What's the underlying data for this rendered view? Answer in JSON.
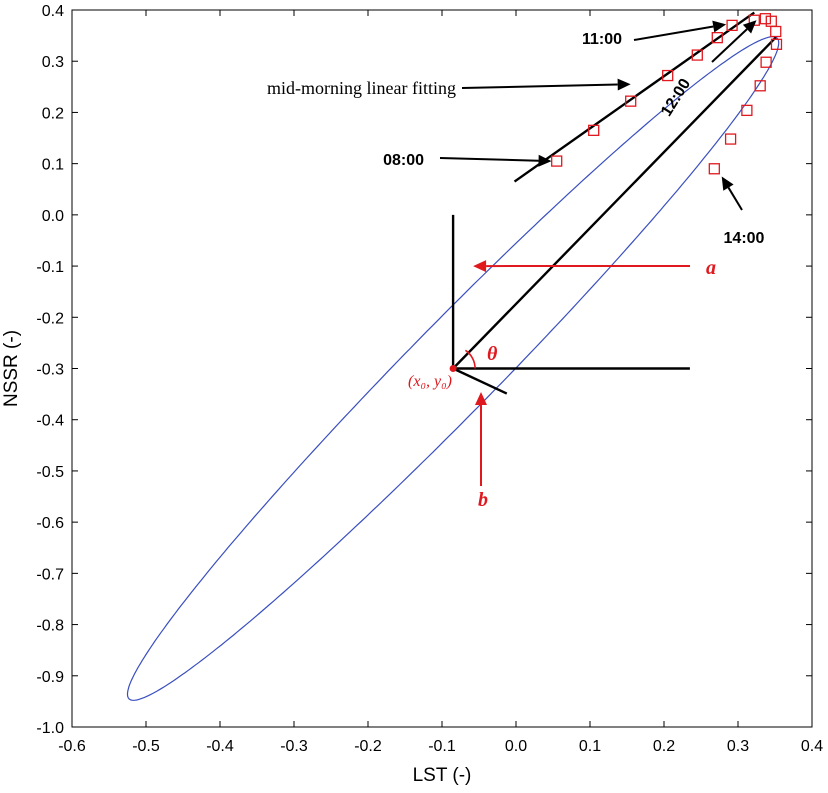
{
  "colors": {
    "ellipse": "#3a4fbf",
    "marker": "#e0191f",
    "annotation_red": "#e0191f",
    "line": "#000000"
  },
  "chart_data": {
    "type": "scatter",
    "title": "",
    "xlabel": "LST (-)",
    "ylabel": "NSSR (-)",
    "xlim": [
      -0.6,
      0.4
    ],
    "ylim": [
      -1.0,
      0.4
    ],
    "xticks": [
      "-0.6",
      "-0.5",
      "-0.4",
      "-0.3",
      "-0.2",
      "-0.1",
      "0.0",
      "0.1",
      "0.2",
      "0.3",
      "0.4"
    ],
    "yticks": [
      "0.4",
      "0.3",
      "0.2",
      "0.1",
      "0.0",
      "-0.1",
      "-0.2",
      "-0.3",
      "-0.4",
      "-0.5",
      "-0.6",
      "-0.7",
      "-0.8",
      "-0.9",
      "-1.0"
    ],
    "grid": false,
    "ellipse": {
      "x0": -0.085,
      "y0": -0.3,
      "a": 0.78,
      "b": 0.07,
      "theta_deg": 56
    },
    "observations": {
      "x": [
        0.055,
        0.105,
        0.155,
        0.205,
        0.245,
        0.272,
        0.292,
        0.322,
        0.337,
        0.345,
        0.351,
        0.352,
        0.33,
        0.338,
        0.312,
        0.29,
        0.268
      ],
      "y": [
        0.105,
        0.165,
        0.222,
        0.272,
        0.312,
        0.346,
        0.37,
        0.38,
        0.383,
        0.378,
        0.358,
        0.333,
        0.252,
        0.298,
        0.204,
        0.148,
        0.09
      ]
    },
    "fitting_line": {
      "x": [
        -0.002,
        0.322
      ],
      "y": [
        0.065,
        0.395
      ],
      "label": "mid-morning linear fitting"
    },
    "annotations": {
      "t0800": "08:00",
      "t1100": "11:00",
      "t1200": "12:00",
      "t1400": "14:00",
      "a": "a",
      "b": "b",
      "theta": "θ",
      "center": "(x₀, y₀)"
    }
  }
}
